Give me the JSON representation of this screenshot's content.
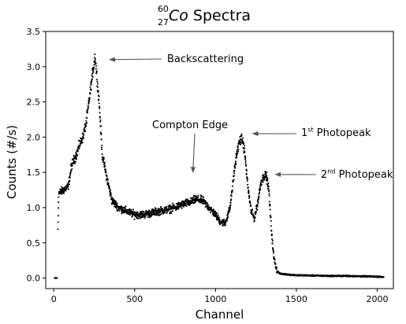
{
  "chart_data": {
    "type": "scatter",
    "title": {
      "mass_number": "60",
      "atomic_number": "27",
      "element": "Co",
      "text": "Spectra"
    },
    "xlabel": "Channel",
    "ylabel": "Counts (#/s)",
    "xlim": [
      -50,
      2100
    ],
    "ylim": [
      -0.15,
      3.5
    ],
    "xticks": [
      0,
      500,
      1000,
      1500,
      2000
    ],
    "yticks": [
      0.0,
      0.5,
      1.0,
      1.5,
      2.0,
      2.5,
      3.0,
      3.5
    ],
    "grid": false,
    "marker_color": "#000000",
    "series": [
      {
        "points_approx": [
          [
            5,
            0.0
          ],
          [
            20,
            0.0
          ],
          [
            25,
            0.7
          ],
          [
            30,
            1.2
          ],
          [
            60,
            1.25
          ],
          [
            90,
            1.3
          ],
          [
            110,
            1.6
          ],
          [
            140,
            1.75
          ],
          [
            160,
            1.9
          ],
          [
            180,
            2.0
          ],
          [
            200,
            2.2
          ],
          [
            220,
            2.55
          ],
          [
            240,
            2.9
          ],
          [
            255,
            3.15
          ],
          [
            265,
            2.9
          ],
          [
            280,
            2.5
          ],
          [
            300,
            1.75
          ],
          [
            330,
            1.4
          ],
          [
            360,
            1.1
          ],
          [
            400,
            1.0
          ],
          [
            450,
            0.95
          ],
          [
            500,
            0.9
          ],
          [
            550,
            0.9
          ],
          [
            600,
            0.92
          ],
          [
            650,
            0.95
          ],
          [
            700,
            0.97
          ],
          [
            750,
            1.0
          ],
          [
            800,
            1.05
          ],
          [
            850,
            1.08
          ],
          [
            880,
            1.12
          ],
          [
            920,
            1.1
          ],
          [
            960,
            1.0
          ],
          [
            1000,
            0.9
          ],
          [
            1030,
            0.8
          ],
          [
            1060,
            0.78
          ],
          [
            1090,
            1.0
          ],
          [
            1110,
            1.4
          ],
          [
            1130,
            1.75
          ],
          [
            1150,
            1.95
          ],
          [
            1165,
            1.97
          ],
          [
            1180,
            1.8
          ],
          [
            1200,
            1.3
          ],
          [
            1220,
            0.95
          ],
          [
            1240,
            0.85
          ],
          [
            1260,
            1.05
          ],
          [
            1280,
            1.35
          ],
          [
            1300,
            1.45
          ],
          [
            1315,
            1.45
          ],
          [
            1330,
            1.25
          ],
          [
            1345,
            0.7
          ],
          [
            1360,
            0.3
          ],
          [
            1380,
            0.1
          ],
          [
            1400,
            0.06
          ],
          [
            1500,
            0.04
          ],
          [
            1600,
            0.035
          ],
          [
            1700,
            0.03
          ],
          [
            1800,
            0.03
          ],
          [
            1900,
            0.025
          ],
          [
            2000,
            0.02
          ],
          [
            2040,
            0.015
          ]
        ]
      }
    ],
    "annotations": [
      {
        "text": "Backscattering",
        "text_x": 340,
        "text_y": 3.1,
        "point_x": 345,
        "point_y": 3.1,
        "arrow_to_x": 345,
        "arrow_to_y": 3.1
      },
      {
        "text": "Compton Edge",
        "arrow_to_x": 860,
        "arrow_to_y": 1.5
      },
      {
        "text": "Photopeak",
        "ordinal": "1",
        "ordinal_suffix": "st",
        "arrow_to_x": 1230,
        "arrow_to_y": 2.05
      },
      {
        "text": "Photopeak",
        "ordinal": "2",
        "ordinal_suffix": "nd",
        "arrow_to_x": 1370,
        "arrow_to_y": 1.47
      }
    ]
  }
}
